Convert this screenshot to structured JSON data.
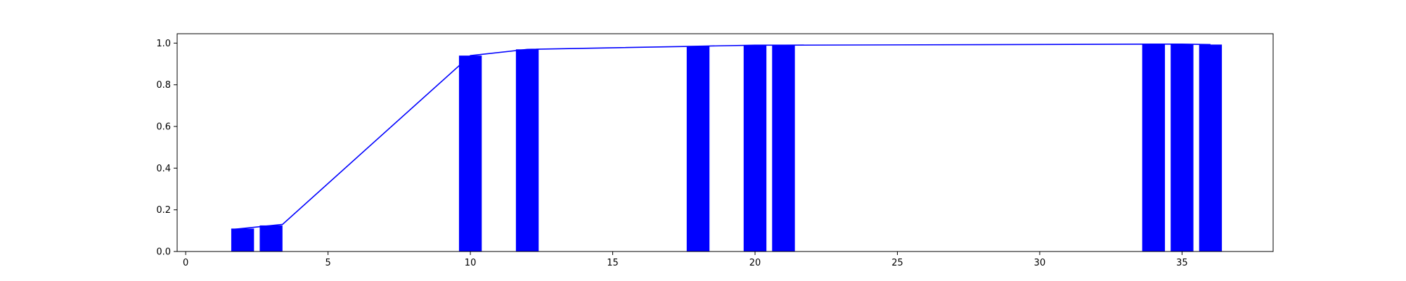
{
  "chart_data": {
    "type": "bar",
    "title": "",
    "xlabel": "",
    "ylabel": "",
    "xlim": [
      -0.3,
      38.2
    ],
    "ylim": [
      0,
      1.045
    ],
    "grid": false,
    "legend": "none",
    "bar_width": 0.8,
    "color": "#0000ff",
    "x_ticks": [
      0,
      5,
      10,
      15,
      20,
      25,
      30,
      35
    ],
    "y_ticks": [
      "0.0",
      "0.2",
      "0.4",
      "0.6",
      "0.8",
      "1.0"
    ],
    "bars": {
      "x": [
        2,
        3,
        10,
        12,
        18,
        20,
        21,
        34,
        35,
        36
      ],
      "values": [
        0.11,
        0.125,
        0.94,
        0.97,
        0.985,
        0.99,
        0.99,
        0.995,
        0.995,
        0.993
      ]
    },
    "line": {
      "x": [
        1.6,
        3.4,
        10,
        12,
        18,
        20,
        21,
        34,
        35,
        36
      ],
      "values": [
        0.105,
        0.13,
        0.94,
        0.97,
        0.985,
        0.99,
        0.99,
        0.995,
        0.995,
        0.993
      ]
    }
  }
}
